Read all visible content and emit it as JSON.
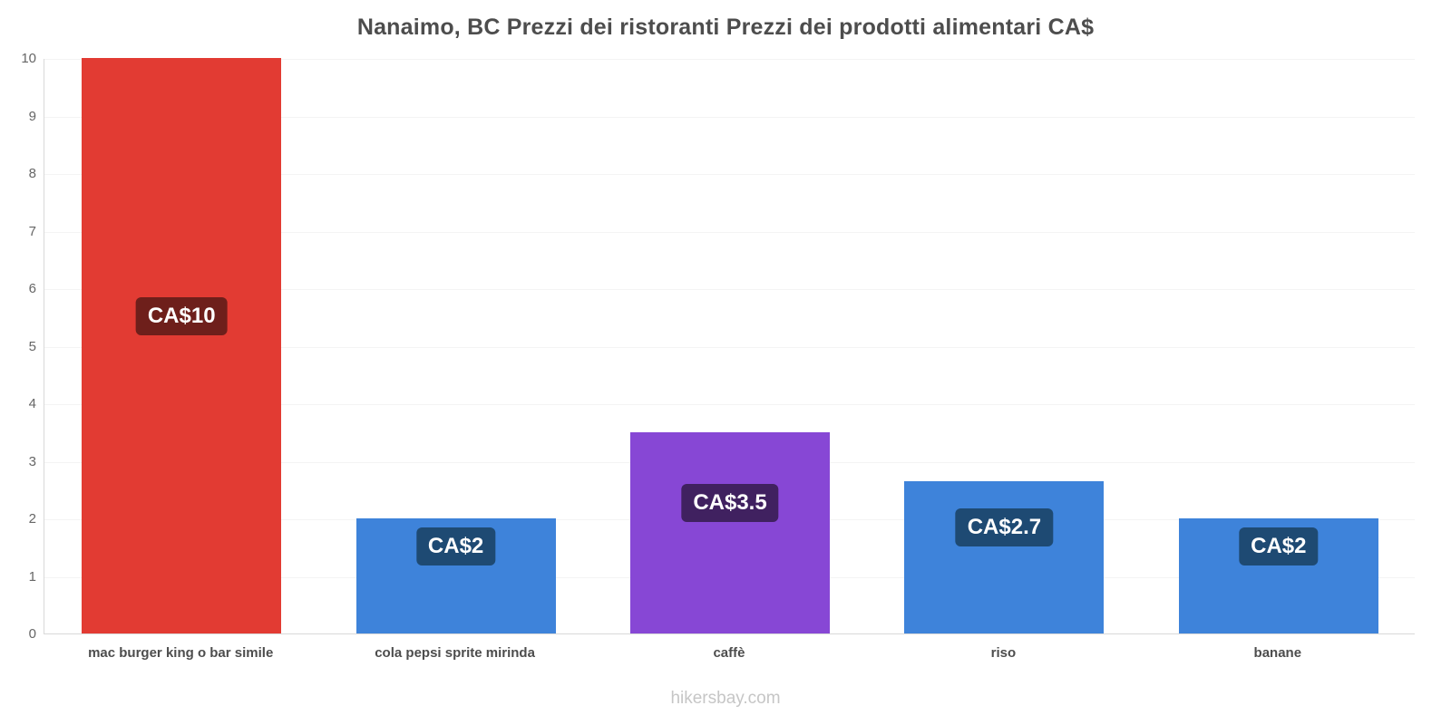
{
  "title": "Nanaimo, BC Prezzi dei ristoranti Prezzi dei prodotti alimentari CA$",
  "footer": "hikersbay.com",
  "chart_data": {
    "type": "bar",
    "title": "Nanaimo, BC Prezzi dei ristoranti Prezzi dei prodotti alimentari CA$",
    "xlabel": "",
    "ylabel": "",
    "categories": [
      "mac burger king o bar simile",
      "cola pepsi sprite mirinda",
      "caffè",
      "riso",
      "banane"
    ],
    "values": [
      10,
      2,
      3.5,
      2.65,
      2
    ],
    "value_labels": [
      "CA$10",
      "CA$2",
      "CA$3.5",
      "CA$2.7",
      "CA$2"
    ],
    "bar_colors": [
      "#e23b33",
      "#3e83da",
      "#8747d5",
      "#3e83da",
      "#3e83da"
    ],
    "label_bg_colors": [
      "#6e1f1b",
      "#1e4a73",
      "#402160",
      "#1e4a73",
      "#1e4a73"
    ],
    "ylim": [
      0,
      10
    ],
    "yticks": [
      0,
      1,
      2,
      3,
      4,
      5,
      6,
      7,
      8,
      9,
      10
    ],
    "grid": true,
    "legend": "none",
    "currency": "CA$"
  }
}
